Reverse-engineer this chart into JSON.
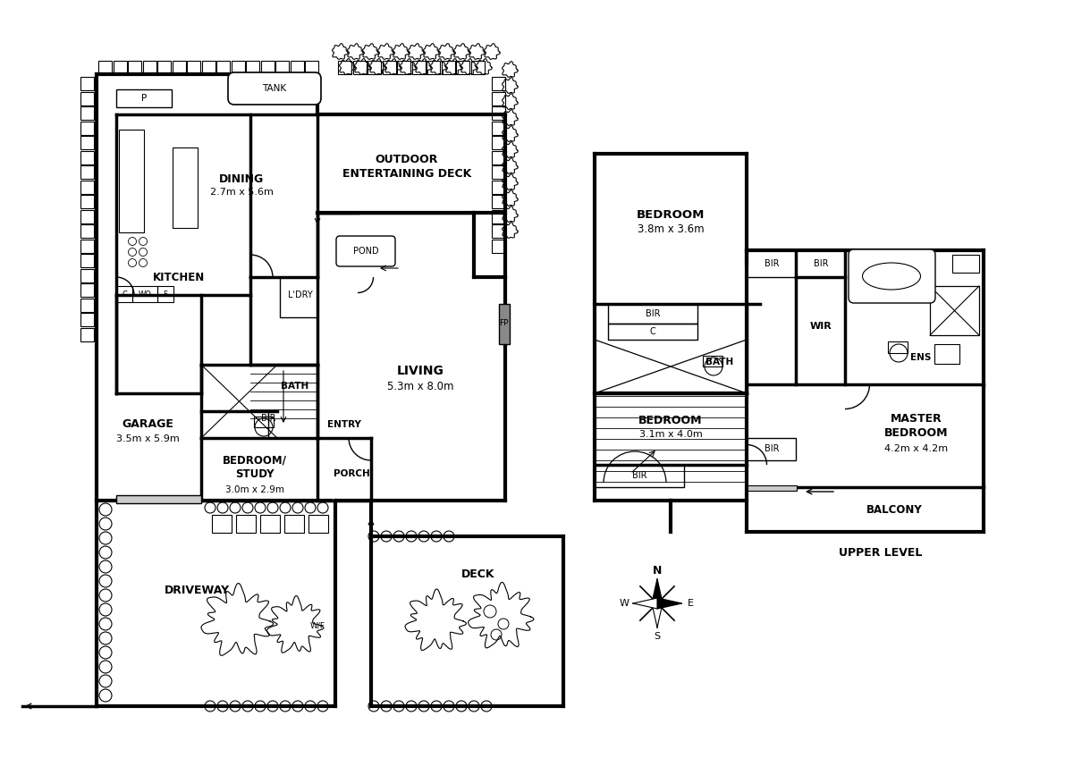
{
  "background_color": "#ffffff",
  "wall_lw": 2.5,
  "thin_lw": 1.0,
  "labels": {
    "dining": [
      "DINING",
      "2.7m x 5.6m"
    ],
    "outdoor_deck": [
      "OUTDOOR",
      "ENTERTAINING DECK"
    ],
    "kitchen": "KITCHEN",
    "ldry": "L'DRY",
    "living": [
      "LIVING",
      "5.3m x 8.0m"
    ],
    "garage": [
      "GARAGE",
      "3.5m x 5.9m"
    ],
    "bath_lower": "BATH",
    "bedroom_study": [
      "BEDROOM/",
      "STUDY",
      "3.0m x 2.9m"
    ],
    "entry": "ENTRY",
    "porch": "PORCH",
    "driveway": "DRIVEWAY",
    "deck": "DECK",
    "tank": "TANK",
    "pond": "POND",
    "p": "P",
    "fp": "FP",
    "bir": "BIR",
    "c_label": "C",
    "wo": "WO",
    "f_label": "F",
    "bedroom1": [
      "BEDROOM",
      "3.8m x 3.6m"
    ],
    "bath_upper": "BATH",
    "wir": "WIR",
    "ens": "ENS",
    "master_bedroom": [
      "MASTER",
      "BEDROOM",
      "4.2m x 4.2m"
    ],
    "bedroom3": [
      "BEDROOM",
      "3.1m x 4.0m"
    ],
    "balcony": "BALCONY",
    "upper_level": "UPPER LEVEL"
  }
}
